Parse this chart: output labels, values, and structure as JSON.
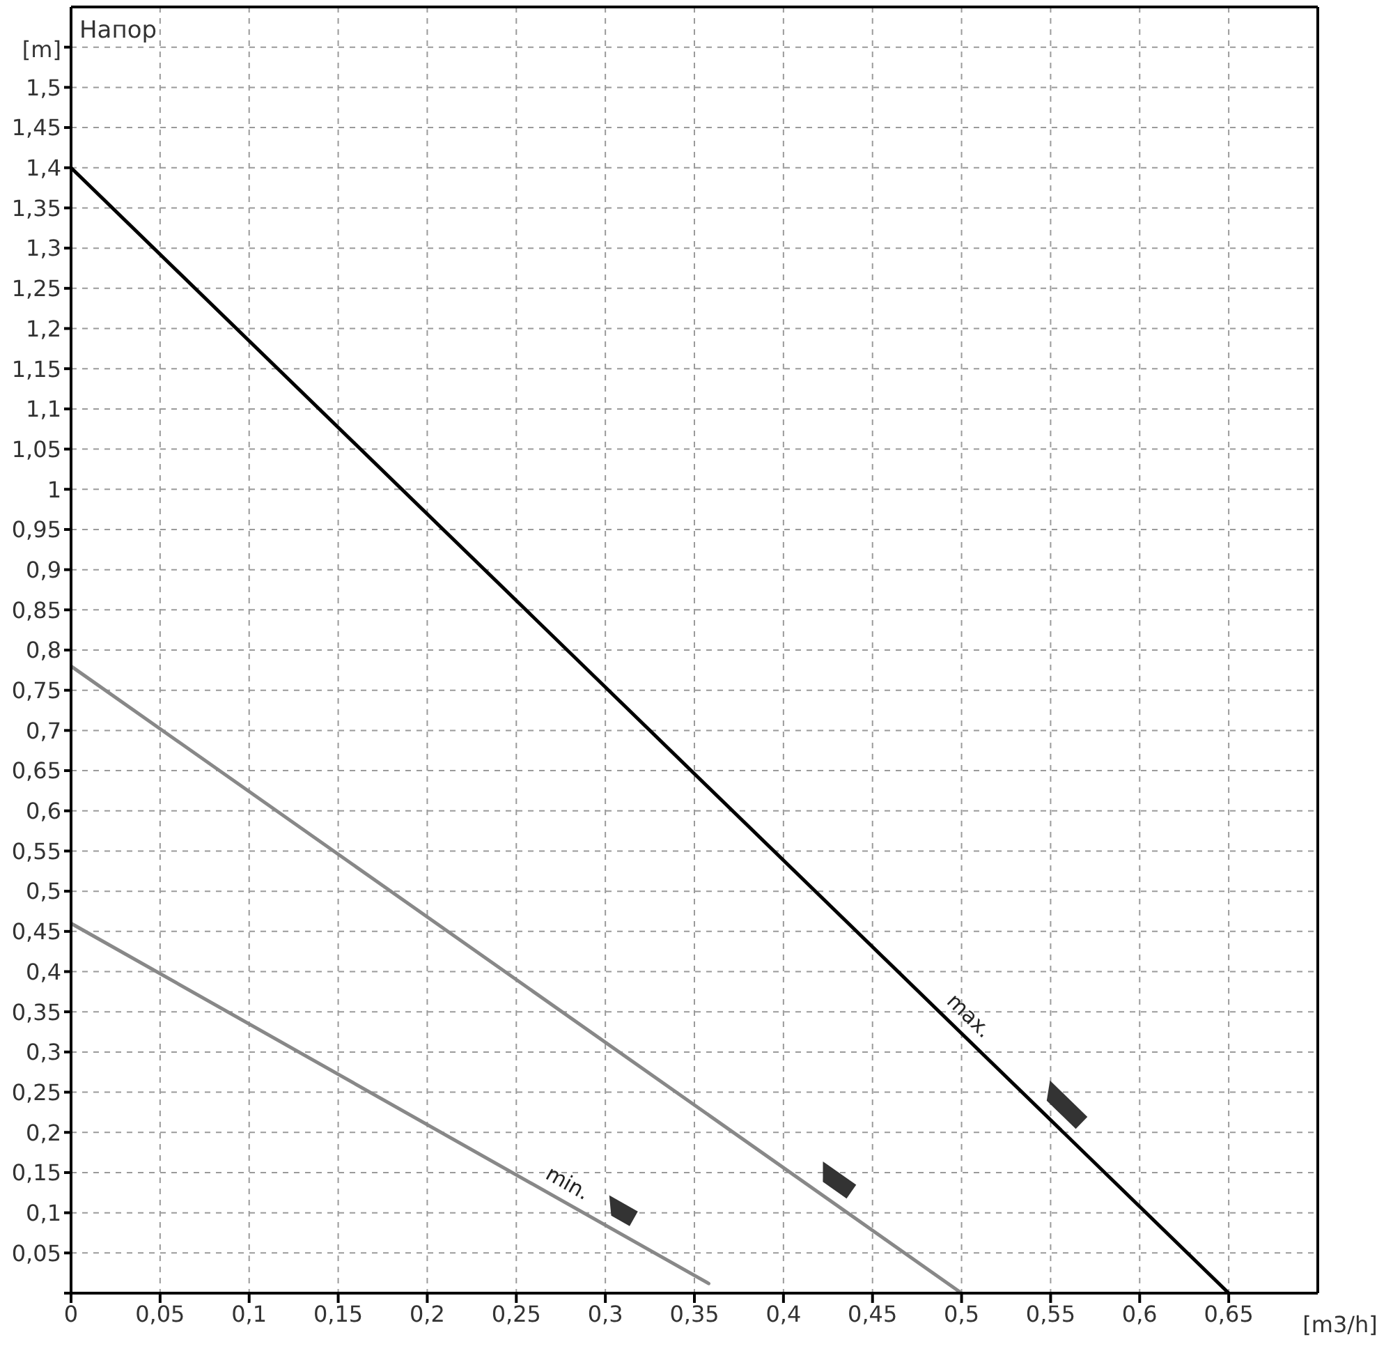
{
  "chart_data": {
    "type": "line",
    "title": "Напор",
    "xlabel": "[m3/h]",
    "ylabel": "[m]",
    "xlim": [
      0,
      0.7
    ],
    "ylim": [
      0,
      1.6
    ],
    "xticks": [
      0,
      {
        "value": 0.05,
        "label": "0,05"
      },
      {
        "value": 0.1,
        "label": "0,1"
      },
      {
        "value": 0.15,
        "label": "0,15"
      },
      {
        "value": 0.2,
        "label": "0,2"
      },
      {
        "value": 0.25,
        "label": "0,25"
      },
      {
        "value": 0.3,
        "label": "0,3"
      },
      {
        "value": 0.35,
        "label": "0,35"
      },
      {
        "value": 0.4,
        "label": "0,4"
      },
      {
        "value": 0.45,
        "label": "0,45"
      },
      {
        "value": 0.5,
        "label": "0,5"
      },
      {
        "value": 0.55,
        "label": "0,55"
      },
      {
        "value": 0.6,
        "label": "0,6"
      },
      {
        "value": 0.65,
        "label": "0,65"
      }
    ],
    "yticks": [
      {
        "value": 0,
        "label": null
      },
      {
        "value": 0.05,
        "label": "0,05"
      },
      {
        "value": 0.1,
        "label": "0,1"
      },
      {
        "value": 0.15,
        "label": "0,15"
      },
      {
        "value": 0.2,
        "label": "0,2"
      },
      {
        "value": 0.25,
        "label": "0,25"
      },
      {
        "value": 0.3,
        "label": "0,3"
      },
      {
        "value": 0.35,
        "label": "0,35"
      },
      {
        "value": 0.4,
        "label": "0,4"
      },
      {
        "value": 0.45,
        "label": "0,45"
      },
      {
        "value": 0.5,
        "label": "0,5"
      },
      {
        "value": 0.55,
        "label": "0,55"
      },
      {
        "value": 0.6,
        "label": "0,6"
      },
      {
        "value": 0.65,
        "label": "0,65"
      },
      {
        "value": 0.7,
        "label": "0,7"
      },
      {
        "value": 0.75,
        "label": "0,75"
      },
      {
        "value": 0.8,
        "label": "0,8"
      },
      {
        "value": 0.85,
        "label": "0,85"
      },
      {
        "value": 0.9,
        "label": "0,9"
      },
      {
        "value": 0.95,
        "label": "0,95"
      },
      1,
      {
        "value": 1.05,
        "label": "1,05"
      },
      {
        "value": 1.1,
        "label": "1,1"
      },
      {
        "value": 1.15,
        "label": "1,15"
      },
      {
        "value": 1.2,
        "label": "1,2"
      },
      {
        "value": 1.25,
        "label": "1,25"
      },
      {
        "value": 1.3,
        "label": "1,3"
      },
      {
        "value": 1.35,
        "label": "1,35"
      },
      {
        "value": 1.4,
        "label": "1,4"
      },
      {
        "value": 1.45,
        "label": "1,45"
      },
      {
        "value": 1.5,
        "label": "1,5"
      },
      {
        "value": 1.55,
        "label": null
      }
    ],
    "grid": true,
    "line_style": "solid",
    "marker": "none",
    "series": [
      {
        "name": "max.",
        "color": "#000000",
        "x": [
          0,
          0.65
        ],
        "values": [
          1.4,
          0
        ]
      },
      {
        "color": "#888888",
        "x": [
          0,
          0.5
        ],
        "values": [
          0.78,
          0
        ]
      },
      {
        "name": "min.",
        "color": "#888888",
        "x": [
          0,
          0.358
        ],
        "values": [
          0.46,
          0.012
        ]
      }
    ]
  }
}
